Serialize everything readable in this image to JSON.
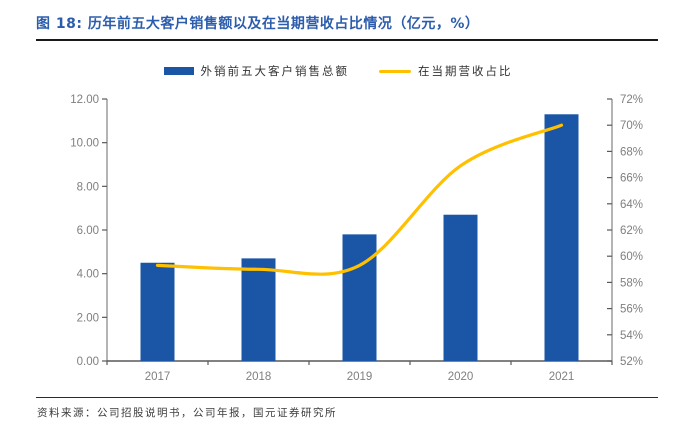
{
  "figure": {
    "title": "图 18: 历年前五大客户销售额以及在当期营收占比情况（亿元，%）",
    "source": "资料来源：公司招股说明书，公司年报，国元证券研究所"
  },
  "legend": {
    "bar_label": "外销前五大客户销售总额",
    "line_label": "在当期营收占比"
  },
  "colors": {
    "title_blue": "#2c5dac",
    "bar_blue": "#1b55a5",
    "line_yellow": "#ffc000",
    "axis_label_gray": "#7f7f7f",
    "axis_line_gray": "#8c8c8c",
    "axis_bottom_gray": "#595959"
  },
  "chart_data": {
    "type": "bar",
    "subtype": "bar+line dual axis",
    "title": "历年前五大客户销售额以及在当期营收占比情况（亿元，%）",
    "categories": [
      "2017",
      "2018",
      "2019",
      "2020",
      "2021"
    ],
    "series": [
      {
        "name": "外销前五大客户销售总额",
        "type": "bar",
        "axis": "left",
        "unit": "亿元",
        "values": [
          4.5,
          4.7,
          5.8,
          6.7,
          11.3
        ]
      },
      {
        "name": "在当期营收占比",
        "type": "line",
        "axis": "right",
        "unit": "%",
        "smooth": true,
        "values": [
          59.3,
          59.0,
          59.3,
          66.9,
          70.0
        ]
      }
    ],
    "left_axis": {
      "min": 0,
      "max": 12,
      "step": 2,
      "decimals": 2
    },
    "right_axis": {
      "min": 52,
      "max": 72,
      "step": 2,
      "suffix": "%"
    },
    "grid": false,
    "legend_position": "top-center"
  }
}
